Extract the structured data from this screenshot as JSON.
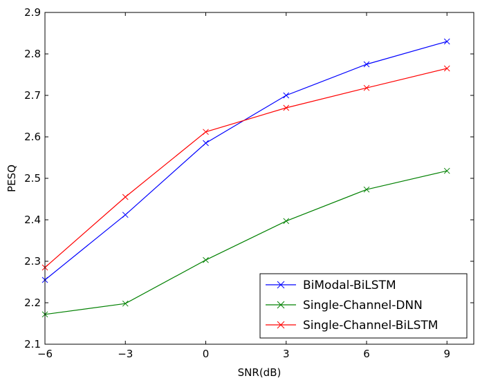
{
  "chart_data": {
    "type": "line",
    "xlabel": "SNR(dB)",
    "ylabel": "PESQ",
    "xlim": [
      -6,
      10
    ],
    "ylim": [
      2.1,
      2.9
    ],
    "xticks": [
      -6,
      -3,
      0,
      3,
      6,
      9
    ],
    "xtick_labels": [
      "−6",
      "−3",
      "0",
      "3",
      "6",
      "9"
    ],
    "yticks": [
      2.1,
      2.2,
      2.3,
      2.4,
      2.5,
      2.6,
      2.7,
      2.8,
      2.9
    ],
    "ytick_labels": [
      "2.1",
      "2.2",
      "2.3",
      "2.4",
      "2.5",
      "2.6",
      "2.7",
      "2.8",
      "2.9"
    ],
    "grid": false,
    "legend_position": "bottom-right",
    "x": [
      -6,
      -3,
      0,
      3,
      6,
      9
    ],
    "series": [
      {
        "name": "BiModal-BiLSTM",
        "color": "#0000ff",
        "marker": "x",
        "values": [
          2.255,
          2.412,
          2.585,
          2.7,
          2.775,
          2.83
        ]
      },
      {
        "name": "Single-Channel-DNN",
        "color": "#008000",
        "marker": "x",
        "values": [
          2.172,
          2.198,
          2.303,
          2.397,
          2.473,
          2.518
        ]
      },
      {
        "name": "Single-Channel-BiLSTM",
        "color": "#ff0000",
        "marker": "x",
        "values": [
          2.285,
          2.455,
          2.612,
          2.67,
          2.718,
          2.765
        ]
      }
    ]
  }
}
